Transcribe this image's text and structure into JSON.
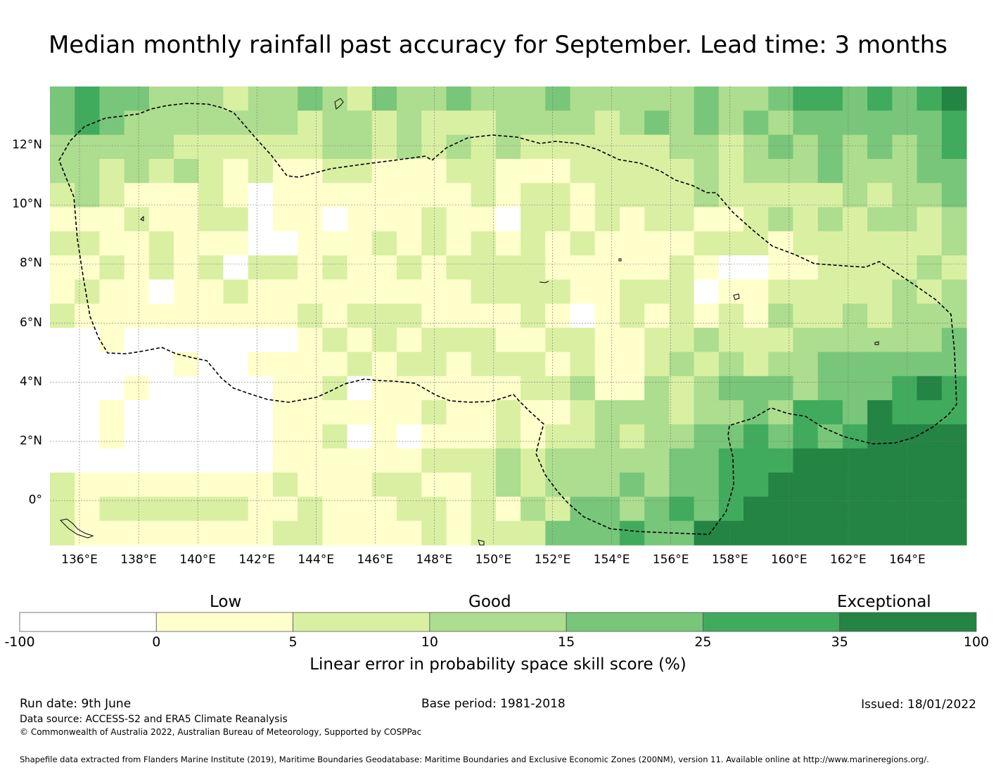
{
  "title": "Median monthly rainfall past accuracy for September. Lead time: 3 months",
  "map": {
    "lon_ticks": [
      "136°E",
      "138°E",
      "140°E",
      "142°E",
      "144°E",
      "146°E",
      "148°E",
      "150°E",
      "152°E",
      "154°E",
      "156°E",
      "158°E",
      "160°E",
      "162°E",
      "164°E"
    ],
    "lat_ticks": [
      "12°N",
      "10°N",
      "8°N",
      "6°N",
      "4°N",
      "2°N",
      "0°"
    ],
    "lon_values": [
      136,
      138,
      140,
      142,
      144,
      146,
      148,
      150,
      152,
      154,
      156,
      158,
      160,
      162,
      164
    ],
    "lat_values": [
      12,
      10,
      8,
      6,
      4,
      2,
      0
    ],
    "extent": {
      "lon_min": 135.0,
      "lon_max": 166.0,
      "lat_min": -1.5,
      "lat_max": 14.0
    },
    "boundary_label": "EEZ boundary (dashed)"
  },
  "colorbar": {
    "category_labels": [
      "Low",
      "Good",
      "Exceptional"
    ],
    "boundaries": [
      "-100",
      "0",
      "5",
      "10",
      "15",
      "25",
      "35",
      "100"
    ],
    "colors": [
      "#ffffff",
      "#ffffcc",
      "#d9f0a3",
      "#addd8e",
      "#78c679",
      "#41ab5d",
      "#238443"
    ],
    "label": "Linear error in probability space skill score (%)"
  },
  "footer": {
    "run_date": "Run date: 9th June",
    "base_period": "Base period: 1981-2018",
    "issued": "Issued: 18/01/2022",
    "data_source": "Data source: ACCESS-S2 and ERA5 Climate Reanalysis",
    "copyright": "© Commonwealth of Australia 2022, Australian Bureau of Meteorology, Supported by COSPPac",
    "shapefile": "Shapefile data extracted from Flanders Marine Institute (2019), Maritime Boundaries Geodatabase: Maritime Boundaries and Exclusive Economic Zones (200NM), version 11. Available online at http://www.marineregions.org/."
  }
}
